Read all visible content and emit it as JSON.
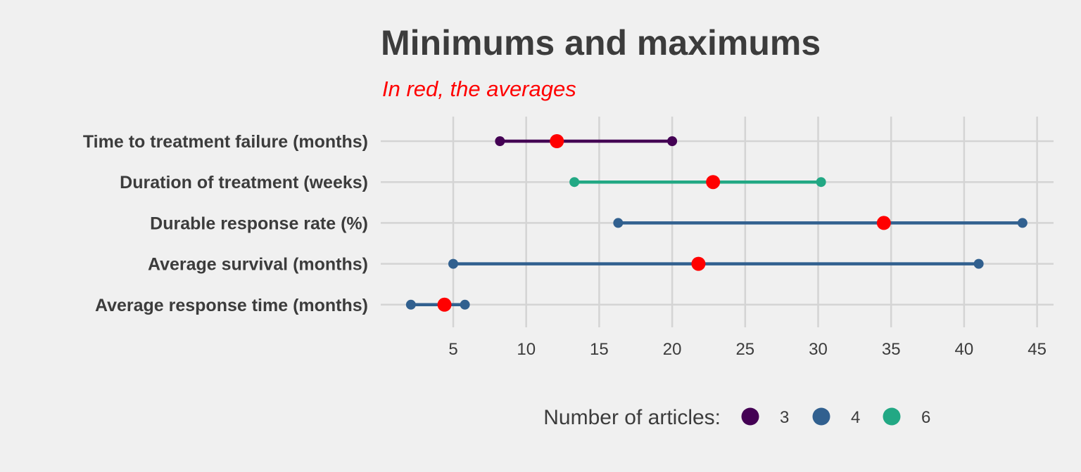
{
  "chart_data": {
    "type": "dumbbell",
    "title": "Minimums and maximums",
    "subtitle": "In red, the averages",
    "categories": [
      "Time to treatment failure (months)",
      "Duration of treatment (weeks)",
      "Durable response rate (%)",
      "Average survival (months)",
      "Average response time (months)"
    ],
    "series": [
      {
        "min": 8.2,
        "max": 20.0,
        "mean": 12.1,
        "articles": 3
      },
      {
        "min": 13.3,
        "max": 30.2,
        "mean": 22.8,
        "articles": 6
      },
      {
        "min": 16.3,
        "max": 44.0,
        "mean": 34.5,
        "articles": 4
      },
      {
        "min": 5.0,
        "max": 41.0,
        "mean": 21.8,
        "articles": 4
      },
      {
        "min": 2.1,
        "max": 5.8,
        "mean": 4.4,
        "articles": 4
      }
    ],
    "xlim": [
      2.1,
      46.0
    ],
    "xticks": [
      5,
      10,
      15,
      20,
      25,
      30,
      35,
      40,
      45
    ],
    "xtick_labels": [
      "5",
      "10",
      "15",
      "20",
      "25",
      "30",
      "35",
      "40",
      "45"
    ],
    "grid": true,
    "mean_color": "#ff0000",
    "legend": {
      "title": "Number of articles:",
      "position": "bottom",
      "items": [
        {
          "label": "3",
          "color": "#440154"
        },
        {
          "label": "4",
          "color": "#31608f"
        },
        {
          "label": "6",
          "color": "#22a884"
        }
      ]
    }
  }
}
